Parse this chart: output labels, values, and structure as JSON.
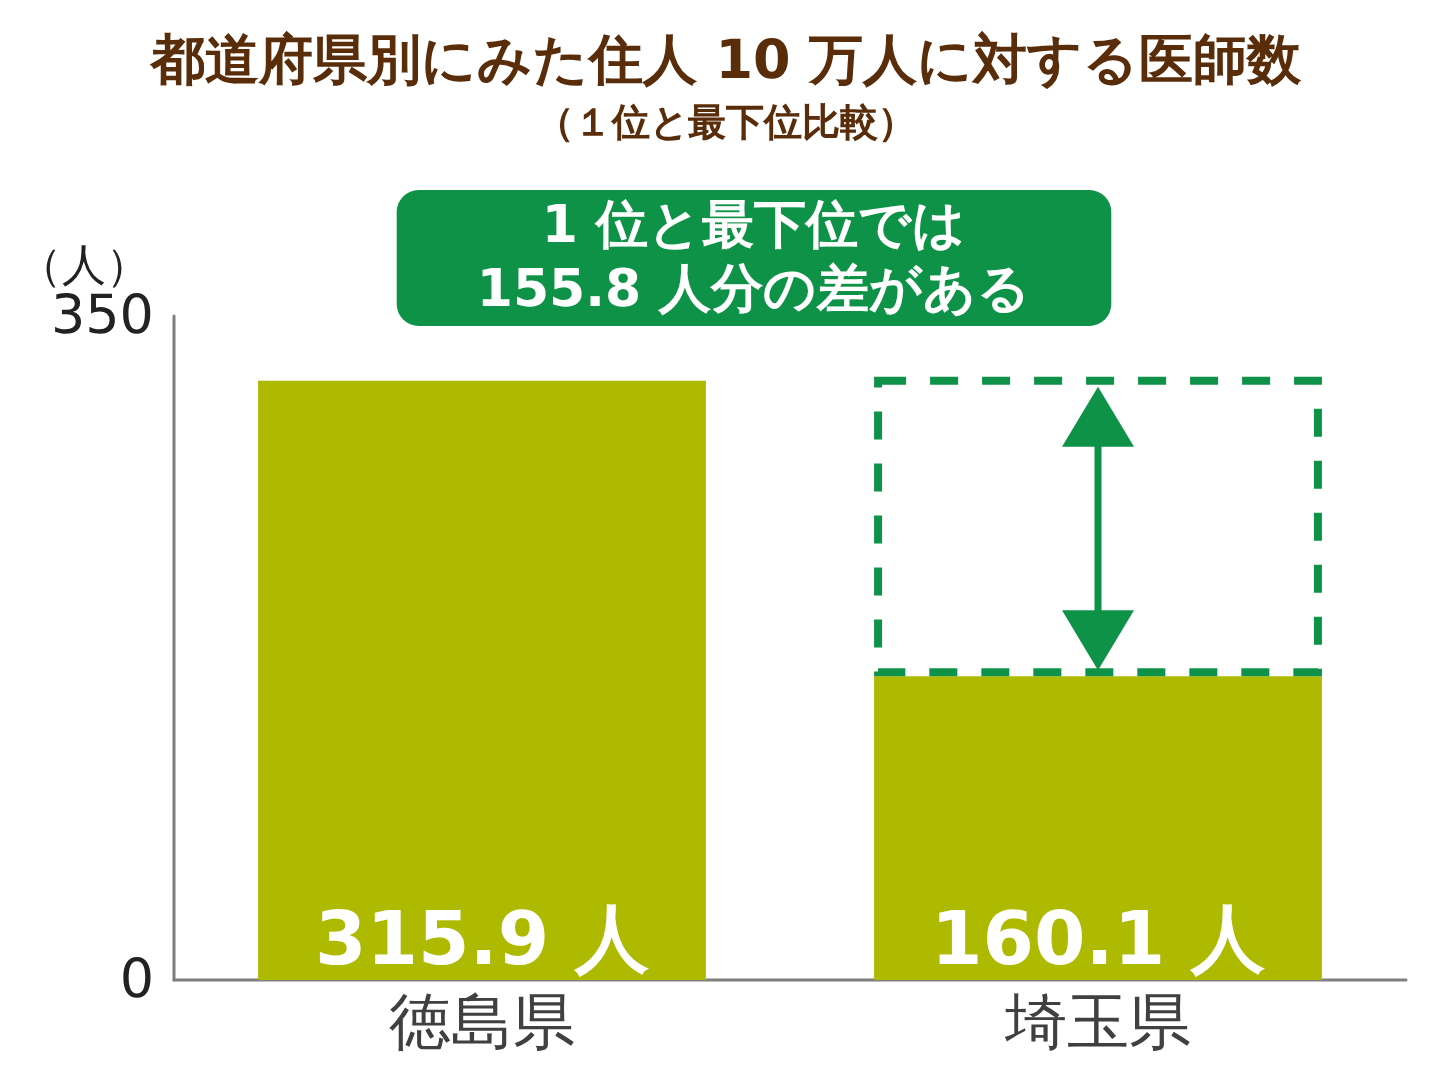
{
  "chart_data": {
    "type": "bar",
    "title": "都道府県別にみた住人 10 万人に対する医師数",
    "subtitle": "（１位と最下位比較）",
    "ylabel": "（人）",
    "categories": [
      "徳島県",
      "埼玉県"
    ],
    "values": [
      315.9,
      160.1
    ],
    "color": "#adba00",
    "value_labels": [
      "315.9 人",
      "160.1 人"
    ],
    "ylim": [
      0,
      350
    ],
    "yticks": [
      0,
      350
    ],
    "annotations": [
      "1 位と最下位では\n155.8 人分の差がある"
    ]
  }
}
